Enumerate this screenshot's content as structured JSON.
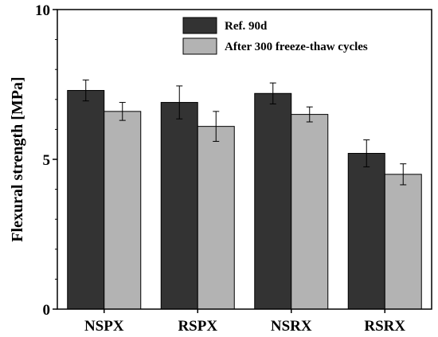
{
  "chart_data": {
    "type": "bar",
    "categories": [
      "NSPX",
      "RSPX",
      "NSRX",
      "RSRX"
    ],
    "series": [
      {
        "name": "Ref. 90d",
        "color": "#333333",
        "values": [
          7.3,
          6.9,
          7.2,
          5.2
        ],
        "errors": [
          0.35,
          0.55,
          0.35,
          0.45
        ]
      },
      {
        "name": "After 300 freeze-thaw cycles",
        "color": "#b3b3b3",
        "values": [
          6.6,
          6.1,
          6.5,
          4.5
        ],
        "errors": [
          0.3,
          0.5,
          0.25,
          0.35
        ]
      }
    ],
    "ylabel": "Flexural strength [MPa]",
    "xlabel": "",
    "ylim": [
      0,
      10
    ],
    "yticks": [
      0,
      5,
      10
    ],
    "legend_position": "top-right",
    "grid": false,
    "error_bars": true
  }
}
